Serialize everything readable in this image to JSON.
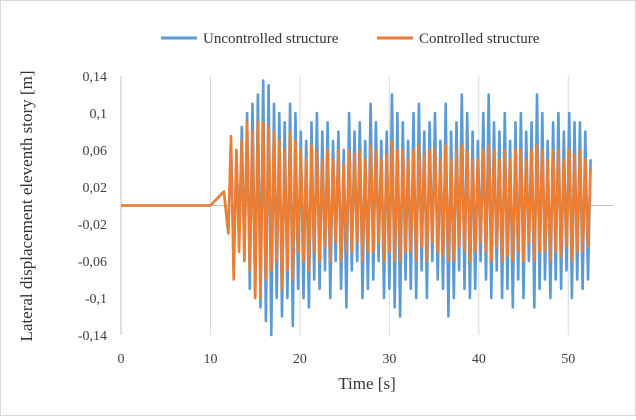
{
  "chart_data": {
    "type": "line",
    "xlabel": "Time [s]",
    "ylabel": "Lateral displacement eleventh  story [m]",
    "xlim": [
      0,
      55
    ],
    "ylim": [
      -0.14,
      0.14
    ],
    "x_ticks": [
      "0",
      "10",
      "20",
      "30",
      "40",
      "50"
    ],
    "y_ticks": [
      "-0,14",
      "-0,1",
      "-0,06",
      "-0,02",
      "0,02",
      "0,06",
      "0,1",
      "0,14"
    ],
    "grid": "vertical",
    "legend_position": "top",
    "series": [
      {
        "name": "Uncontrolled structure",
        "color": "#5B9BD5",
        "x": [
          0,
          10,
          11.5,
          12,
          12.3,
          12.6,
          12.9,
          13.2,
          13.5,
          13.8,
          14.1,
          14.4,
          14.7,
          15.0,
          15.3,
          15.6,
          15.9,
          16.2,
          16.5,
          16.8,
          17.1,
          17.4,
          17.7,
          18.0,
          18.3,
          18.6,
          18.9,
          19.2,
          19.5,
          19.8,
          20.1,
          20.4,
          20.7,
          21.0,
          21.3,
          21.6,
          21.9,
          22.2,
          22.5,
          22.8,
          23.1,
          23.4,
          23.7,
          24.0,
          24.3,
          24.6,
          24.9,
          25.2,
          25.5,
          25.8,
          26.1,
          26.4,
          26.7,
          27.0,
          27.3,
          27.6,
          27.9,
          28.2,
          28.5,
          28.8,
          29.1,
          29.4,
          29.7,
          30.0,
          30.3,
          30.6,
          30.9,
          31.2,
          31.5,
          31.8,
          32.1,
          32.4,
          32.7,
          33.0,
          33.3,
          33.6,
          33.9,
          34.2,
          34.5,
          34.8,
          35.1,
          35.4,
          35.7,
          36.0,
          36.3,
          36.6,
          36.9,
          37.2,
          37.5,
          37.8,
          38.1,
          38.4,
          38.7,
          39.0,
          39.3,
          39.6,
          39.9,
          40.2,
          40.5,
          40.8,
          41.1,
          41.4,
          41.7,
          42.0,
          42.3,
          42.6,
          42.9,
          43.2,
          43.5,
          43.8,
          44.1,
          44.4,
          44.7,
          45.0,
          45.3,
          45.6,
          45.9,
          46.2,
          46.5,
          46.8,
          47.1,
          47.4,
          47.7,
          48.0,
          48.3,
          48.6,
          48.9,
          49.2,
          49.5,
          49.8,
          50.1,
          50.4,
          50.7,
          51.0,
          51.3,
          51.6,
          51.9,
          52.2,
          52.5
        ],
        "y": [
          0,
          0,
          0.015,
          -0.03,
          0.07,
          -0.07,
          0.06,
          -0.04,
          0.085,
          -0.06,
          0.1,
          -0.09,
          0.11,
          -0.1,
          0.12,
          -0.11,
          0.135,
          -0.125,
          0.13,
          -0.14,
          0.11,
          -0.1,
          0.1,
          -0.12,
          0.09,
          -0.1,
          0.11,
          -0.13,
          0.1,
          -0.09,
          0.08,
          -0.1,
          0.07,
          -0.11,
          0.09,
          -0.08,
          0.1,
          -0.09,
          0.08,
          -0.07,
          0.09,
          -0.1,
          0.07,
          -0.06,
          0.08,
          -0.09,
          0.06,
          -0.11,
          0.1,
          -0.07,
          0.08,
          -0.06,
          0.09,
          -0.1,
          0.07,
          -0.09,
          0.11,
          -0.08,
          0.09,
          -0.06,
          0.07,
          -0.1,
          0.08,
          -0.09,
          0.12,
          -0.11,
          0.1,
          -0.12,
          0.09,
          -0.08,
          0.07,
          -0.09,
          0.1,
          -0.1,
          0.11,
          -0.07,
          0.08,
          -0.1,
          0.09,
          -0.06,
          0.1,
          -0.08,
          0.07,
          -0.09,
          0.11,
          -0.12,
          0.08,
          -0.1,
          0.09,
          -0.07,
          0.12,
          -0.09,
          0.1,
          -0.1,
          0.08,
          -0.09,
          0.07,
          -0.06,
          0.1,
          -0.08,
          0.12,
          -0.1,
          0.09,
          -0.07,
          0.08,
          -0.1,
          0.1,
          -0.09,
          0.07,
          -0.11,
          0.09,
          -0.08,
          0.1,
          -0.1,
          0.08,
          -0.06,
          0.09,
          -0.11,
          0.12,
          -0.09,
          0.1,
          -0.08,
          0.07,
          -0.1,
          0.09,
          -0.08,
          0.1,
          -0.09,
          0.08,
          -0.07,
          0.1,
          -0.1,
          0.09,
          -0.08,
          0.09,
          -0.09,
          0.08,
          -0.08,
          0.05
        ]
      },
      {
        "name": "Controlled structure",
        "color": "#ED7D31",
        "x": [
          0,
          10,
          11.5,
          12,
          12.3,
          12.6,
          12.9,
          13.2,
          13.5,
          13.8,
          14.1,
          14.4,
          14.7,
          15.0,
          15.3,
          15.6,
          15.9,
          16.2,
          16.5,
          16.8,
          17.1,
          17.4,
          17.7,
          18.0,
          18.3,
          18.6,
          18.9,
          19.2,
          19.5,
          19.8,
          20.1,
          20.4,
          20.7,
          21.0,
          21.3,
          21.6,
          21.9,
          22.2,
          22.5,
          22.8,
          23.1,
          23.4,
          23.7,
          24.0,
          24.3,
          24.6,
          24.9,
          25.2,
          25.5,
          25.8,
          26.1,
          26.4,
          26.7,
          27.0,
          27.3,
          27.6,
          27.9,
          28.2,
          28.5,
          28.8,
          29.1,
          29.4,
          29.7,
          30.0,
          30.3,
          30.6,
          30.9,
          31.2,
          31.5,
          31.8,
          32.1,
          32.4,
          32.7,
          33.0,
          33.3,
          33.6,
          33.9,
          34.2,
          34.5,
          34.8,
          35.1,
          35.4,
          35.7,
          36.0,
          36.3,
          36.6,
          36.9,
          37.2,
          37.5,
          37.8,
          38.1,
          38.4,
          38.7,
          39.0,
          39.3,
          39.6,
          39.9,
          40.2,
          40.5,
          40.8,
          41.1,
          41.4,
          41.7,
          42.0,
          42.3,
          42.6,
          42.9,
          43.2,
          43.5,
          43.8,
          44.1,
          44.4,
          44.7,
          45.0,
          45.3,
          45.6,
          45.9,
          46.2,
          46.5,
          46.8,
          47.1,
          47.4,
          47.7,
          48.0,
          48.3,
          48.6,
          48.9,
          49.2,
          49.5,
          49.8,
          50.1,
          50.4,
          50.7,
          51.0,
          51.3,
          51.6,
          51.9,
          52.2,
          52.5
        ],
        "y": [
          0,
          0,
          0.015,
          -0.03,
          0.075,
          -0.08,
          0.06,
          -0.05,
          0.07,
          -0.06,
          0.09,
          -0.07,
          0.08,
          -0.1,
          0.09,
          -0.1,
          0.09,
          -0.08,
          0.085,
          -0.07,
          0.08,
          -0.06,
          0.07,
          -0.09,
          0.06,
          -0.07,
          0.08,
          -0.08,
          0.07,
          -0.05,
          0.06,
          -0.06,
          0.05,
          -0.07,
          0.065,
          -0.05,
          0.06,
          -0.06,
          0.05,
          -0.045,
          0.06,
          -0.06,
          0.05,
          -0.04,
          0.06,
          -0.06,
          0.045,
          -0.05,
          0.06,
          -0.05,
          0.055,
          -0.04,
          0.06,
          -0.06,
          0.05,
          -0.05,
          0.065,
          -0.05,
          0.06,
          -0.04,
          0.05,
          -0.06,
          0.055,
          -0.05,
          0.07,
          -0.06,
          0.06,
          -0.06,
          0.06,
          -0.05,
          0.05,
          -0.05,
          0.06,
          -0.06,
          0.065,
          -0.045,
          0.055,
          -0.06,
          0.06,
          -0.04,
          0.06,
          -0.05,
          0.05,
          -0.055,
          0.065,
          -0.06,
          0.05,
          -0.06,
          0.06,
          -0.045,
          0.065,
          -0.05,
          0.06,
          -0.06,
          0.05,
          -0.05,
          0.05,
          -0.04,
          0.06,
          -0.05,
          0.065,
          -0.06,
          0.06,
          -0.045,
          0.05,
          -0.06,
          0.06,
          -0.055,
          0.05,
          -0.06,
          0.06,
          -0.05,
          0.06,
          -0.06,
          0.05,
          -0.04,
          0.06,
          -0.06,
          0.065,
          -0.05,
          0.06,
          -0.05,
          0.05,
          -0.06,
          0.06,
          -0.05,
          0.06,
          -0.055,
          0.05,
          -0.045,
          0.06,
          -0.06,
          0.055,
          -0.05,
          0.06,
          -0.05,
          0.05,
          -0.045,
          0.04
        ]
      }
    ]
  }
}
